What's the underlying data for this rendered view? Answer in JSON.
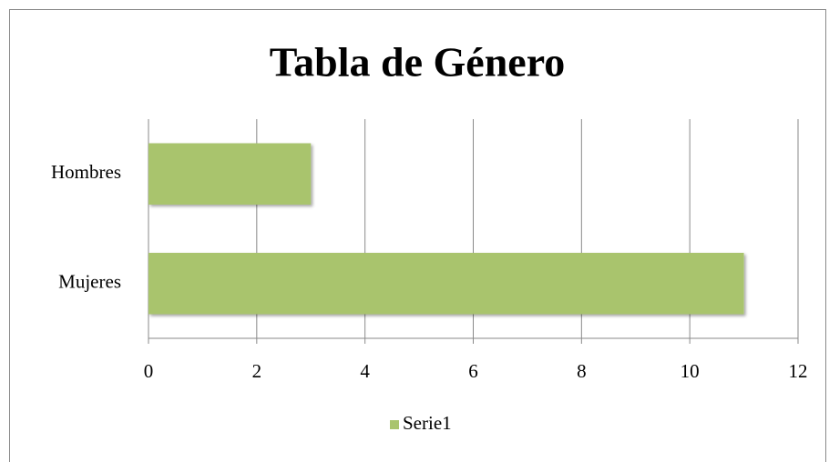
{
  "chart_data": {
    "type": "bar",
    "orientation": "horizontal",
    "title": "Tabla de Género",
    "categories": [
      "Mujeres",
      "Hombres"
    ],
    "series": [
      {
        "name": "Serie1",
        "color": "#a9c46d",
        "values": [
          11,
          3
        ]
      }
    ],
    "xlim": [
      0,
      12
    ],
    "xticks": [
      0,
      2,
      4,
      6,
      8,
      10,
      12
    ],
    "grid": true,
    "legend": "bottom"
  }
}
